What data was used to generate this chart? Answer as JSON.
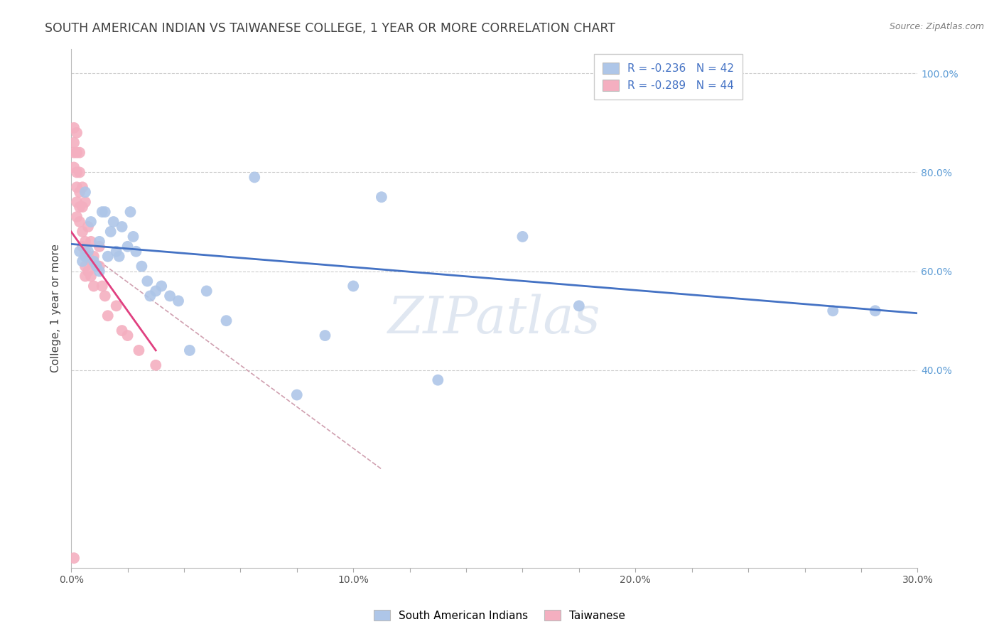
{
  "title": "SOUTH AMERICAN INDIAN VS TAIWANESE COLLEGE, 1 YEAR OR MORE CORRELATION CHART",
  "source": "Source: ZipAtlas.com",
  "ylabel": "College, 1 year or more",
  "watermark": "ZIPatlas",
  "legend_blue_R": -0.236,
  "legend_blue_N": 42,
  "legend_pink_R": -0.289,
  "legend_pink_N": 44,
  "xmin": 0.0,
  "xmax": 0.3,
  "ymin": 0.0,
  "ymax": 1.05,
  "blue_color": "#aec6e8",
  "pink_color": "#f4afc0",
  "blue_line_color": "#4472c4",
  "pink_line_color": "#e04080",
  "dashed_line_color": "#d0a0b0",
  "grid_color": "#cccccc",
  "right_axis_color": "#5b9bd5",
  "title_color": "#404040",
  "source_color": "#808080",
  "blue_scatter_x": [
    0.003,
    0.004,
    0.005,
    0.005,
    0.006,
    0.007,
    0.008,
    0.009,
    0.01,
    0.01,
    0.011,
    0.012,
    0.013,
    0.014,
    0.015,
    0.016,
    0.017,
    0.018,
    0.02,
    0.021,
    0.022,
    0.023,
    0.025,
    0.027,
    0.028,
    0.03,
    0.032,
    0.035,
    0.038,
    0.042,
    0.048,
    0.055,
    0.065,
    0.08,
    0.09,
    0.1,
    0.11,
    0.13,
    0.16,
    0.18,
    0.27,
    0.285
  ],
  "blue_scatter_y": [
    0.64,
    0.62,
    0.76,
    0.63,
    0.64,
    0.7,
    0.62,
    0.61,
    0.66,
    0.6,
    0.72,
    0.72,
    0.63,
    0.68,
    0.7,
    0.64,
    0.63,
    0.69,
    0.65,
    0.72,
    0.67,
    0.64,
    0.61,
    0.58,
    0.55,
    0.56,
    0.57,
    0.55,
    0.54,
    0.44,
    0.56,
    0.5,
    0.79,
    0.35,
    0.47,
    0.57,
    0.75,
    0.38,
    0.67,
    0.53,
    0.52,
    0.52
  ],
  "pink_scatter_x": [
    0.001,
    0.001,
    0.001,
    0.001,
    0.002,
    0.002,
    0.002,
    0.002,
    0.002,
    0.002,
    0.003,
    0.003,
    0.003,
    0.003,
    0.003,
    0.004,
    0.004,
    0.004,
    0.004,
    0.005,
    0.005,
    0.005,
    0.005,
    0.005,
    0.006,
    0.006,
    0.006,
    0.007,
    0.007,
    0.007,
    0.008,
    0.008,
    0.009,
    0.01,
    0.01,
    0.011,
    0.012,
    0.013,
    0.016,
    0.018,
    0.02,
    0.024,
    0.03,
    0.001
  ],
  "pink_scatter_y": [
    0.89,
    0.86,
    0.84,
    0.81,
    0.88,
    0.84,
    0.8,
    0.77,
    0.74,
    0.71,
    0.84,
    0.8,
    0.76,
    0.73,
    0.7,
    0.77,
    0.73,
    0.68,
    0.65,
    0.74,
    0.66,
    0.64,
    0.61,
    0.59,
    0.69,
    0.63,
    0.6,
    0.66,
    0.62,
    0.59,
    0.63,
    0.57,
    0.61,
    0.65,
    0.61,
    0.57,
    0.55,
    0.51,
    0.53,
    0.48,
    0.47,
    0.44,
    0.41,
    0.02
  ],
  "blue_trendline_x": [
    0.0,
    0.3
  ],
  "blue_trendline_y": [
    0.655,
    0.515
  ],
  "pink_trendline_x": [
    0.0,
    0.03
  ],
  "pink_trendline_y": [
    0.68,
    0.44
  ],
  "dashed_trendline_x": [
    0.01,
    0.11
  ],
  "dashed_trendline_y": [
    0.62,
    0.2
  ],
  "bottom_labels": [
    "South American Indians",
    "Taiwanese"
  ],
  "ytick_labels_right": [
    "100.0%",
    "80.0%",
    "60.0%",
    "40.0%"
  ],
  "ytick_vals_right": [
    1.0,
    0.8,
    0.6,
    0.4
  ],
  "xtick_labels": [
    "0.0%",
    "",
    "",
    "",
    "",
    "10.0%",
    "",
    "",
    "",
    "",
    "20.0%",
    "",
    "",
    "",
    "",
    "30.0%"
  ],
  "xtick_vals": [
    0.0,
    0.02,
    0.04,
    0.06,
    0.08,
    0.1,
    0.12,
    0.14,
    0.16,
    0.18,
    0.2,
    0.22,
    0.24,
    0.26,
    0.28,
    0.3
  ]
}
